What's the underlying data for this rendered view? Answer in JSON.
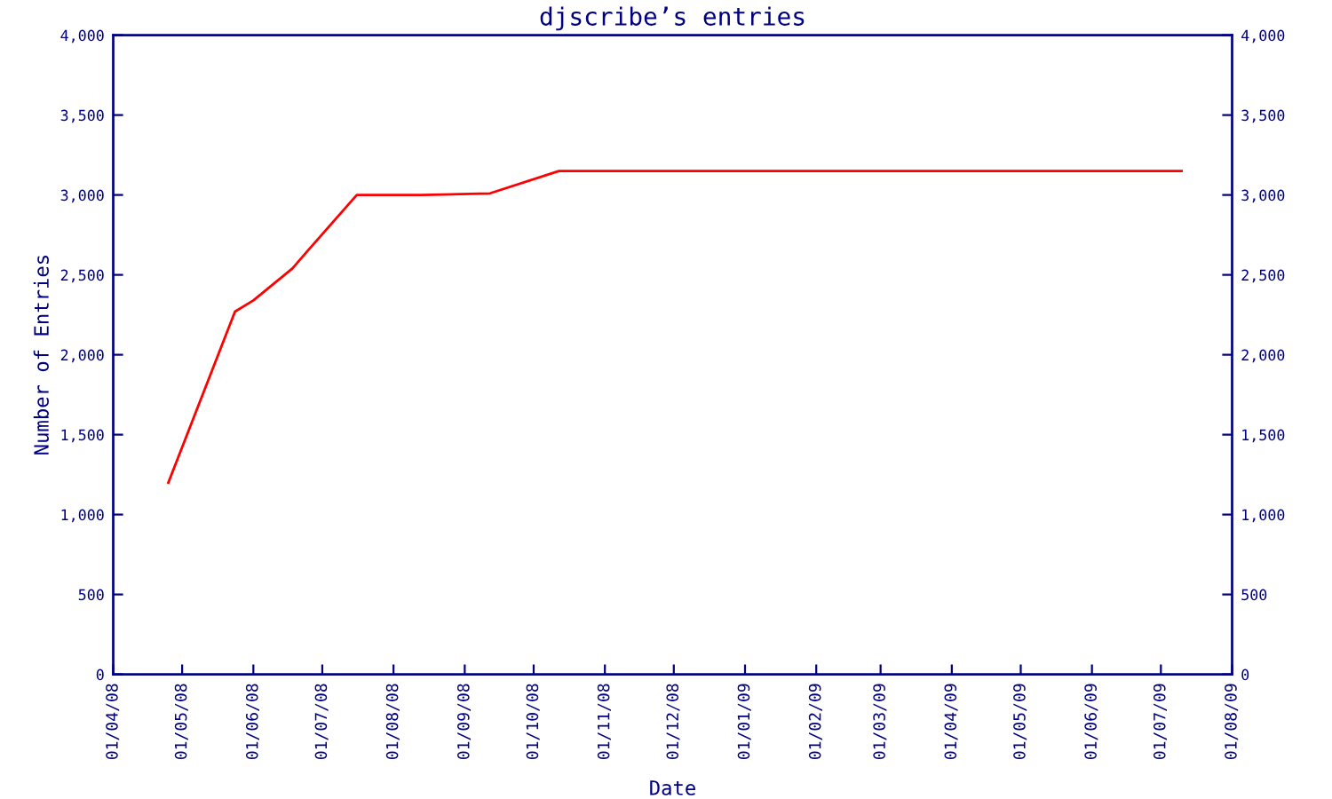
{
  "chart_data": {
    "type": "line",
    "title": "djscribe’s entries",
    "xlabel": "Date",
    "ylabel": "Number of Entries",
    "x": [
      "2008-04-25",
      "2008-05-24",
      "2008-06-01",
      "2008-06-18",
      "2008-06-24",
      "2008-07-16",
      "2008-08-13",
      "2008-09-12",
      "2008-10-12",
      "2009-07-10"
    ],
    "series": [
      {
        "color": "#ff0000",
        "values": [
          1200,
          2270,
          2340,
          2540,
          2640,
          3000,
          3000,
          3010,
          3150,
          3150
        ]
      }
    ],
    "xlim": [
      "2008-04-01",
      "2009-08-01"
    ],
    "xticks": [
      {
        "value": "2008-04-01",
        "label": "01/04/08"
      },
      {
        "value": "2008-05-01",
        "label": "01/05/08"
      },
      {
        "value": "2008-06-01",
        "label": "01/06/08"
      },
      {
        "value": "2008-07-01",
        "label": "01/07/08"
      },
      {
        "value": "2008-08-01",
        "label": "01/08/08"
      },
      {
        "value": "2008-09-01",
        "label": "01/09/08"
      },
      {
        "value": "2008-10-01",
        "label": "01/10/08"
      },
      {
        "value": "2008-11-01",
        "label": "01/11/08"
      },
      {
        "value": "2008-12-01",
        "label": "01/12/08"
      },
      {
        "value": "2009-01-01",
        "label": "01/01/09"
      },
      {
        "value": "2009-02-01",
        "label": "01/02/09"
      },
      {
        "value": "2009-03-01",
        "label": "01/03/09"
      },
      {
        "value": "2009-04-01",
        "label": "01/04/09"
      },
      {
        "value": "2009-05-01",
        "label": "01/05/09"
      },
      {
        "value": "2009-06-01",
        "label": "01/06/09"
      },
      {
        "value": "2009-07-01",
        "label": "01/07/09"
      },
      {
        "value": "2009-08-01",
        "label": "01/08/09"
      }
    ],
    "ylim": [
      0,
      4000
    ],
    "yticks": [
      0,
      500,
      {
        "value": 1000,
        "label": "1,000"
      },
      {
        "value": 1500,
        "label": "1,500"
      },
      {
        "value": 2000,
        "label": "2,000"
      },
      {
        "value": 2500,
        "label": "2,500"
      },
      {
        "value": 3000,
        "label": "3,000"
      },
      {
        "value": 3500,
        "label": "3,500"
      },
      {
        "value": 4000,
        "label": "4,000"
      }
    ],
    "y2lim": [
      0,
      4000
    ],
    "y2ticks": [
      0,
      500,
      {
        "value": 1000,
        "label": "1,000"
      },
      {
        "value": 1500,
        "label": "1,500"
      },
      {
        "value": 2000,
        "label": "2,000"
      },
      {
        "value": 2500,
        "label": "2,500"
      },
      {
        "value": 3000,
        "label": "3,000"
      },
      {
        "value": 3500,
        "label": "3,500"
      },
      {
        "value": 4000,
        "label": "4,000"
      }
    ],
    "grid": false,
    "legend": false,
    "marker": "none",
    "line_style": "solid"
  }
}
